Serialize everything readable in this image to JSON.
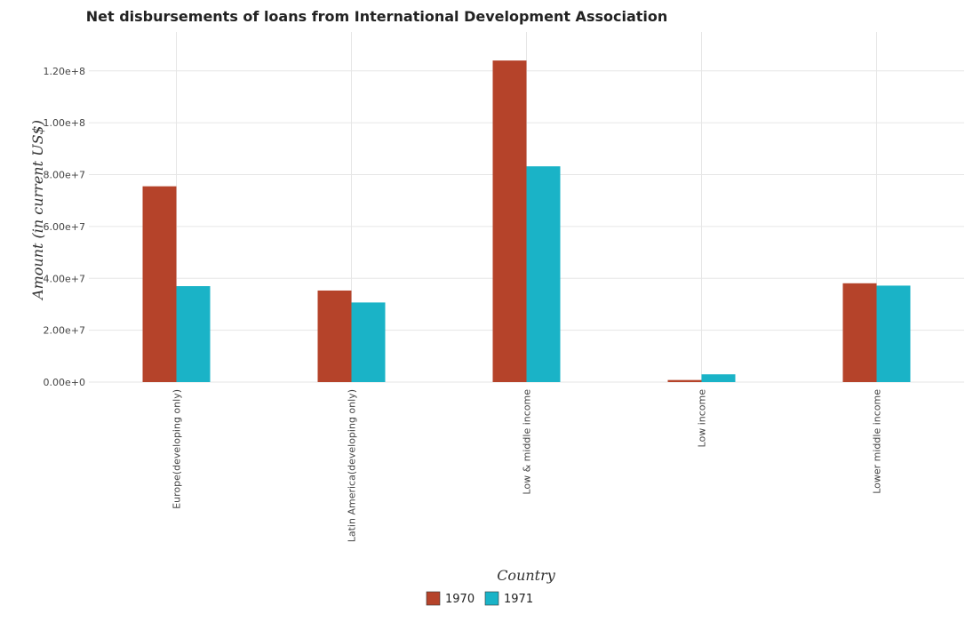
{
  "chart_data": {
    "type": "bar",
    "title": "Net disbursements of loans from International Development Association",
    "xlabel": "Country",
    "ylabel": "Amount (in current US$)",
    "categories": [
      "Europe(developing only)",
      "Latin America(developing only)",
      "Low & middle income",
      "Low income",
      "Lower middle income"
    ],
    "series": [
      {
        "name": "1970",
        "color": "#b5432a",
        "values": [
          75500000,
          35300000,
          124000000,
          800000,
          38100000
        ]
      },
      {
        "name": "1971",
        "color": "#1ab3c7",
        "values": [
          37000000,
          30700000,
          83200000,
          3000000,
          37200000
        ]
      }
    ],
    "ylim": [
      0,
      135000000
    ],
    "yticks": [
      0,
      20000000,
      40000000,
      60000000,
      80000000,
      100000000,
      120000000
    ],
    "ytick_labels": [
      "0.00e+0",
      "2.00e+7",
      "4.00e+7",
      "6.00e+7",
      "8.00e+7",
      "1.00e+8",
      "1.20e+8"
    ],
    "grid": true,
    "legend_position": "bottom"
  }
}
